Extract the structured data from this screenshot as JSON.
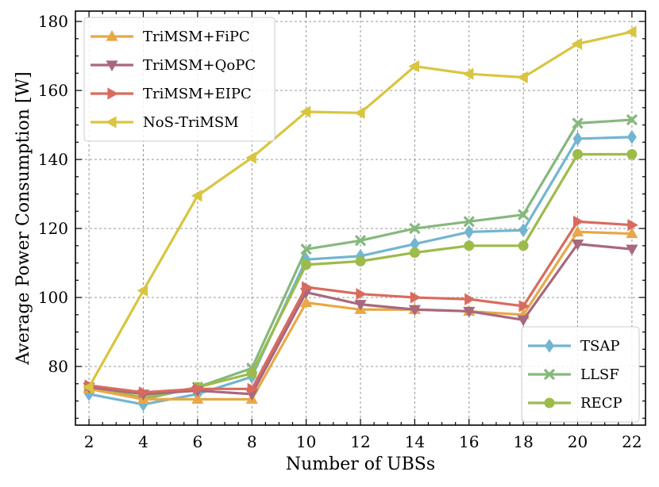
{
  "chart_data": {
    "type": "line",
    "title": "",
    "xlabel": "Number of UBSs",
    "ylabel": "Average Power Consumption [W]",
    "x": [
      2,
      4,
      6,
      8,
      10,
      12,
      14,
      16,
      18,
      20,
      22
    ],
    "xlim": [
      1.5,
      22.5
    ],
    "ylim": [
      63,
      183
    ],
    "xticks": [
      2,
      4,
      6,
      8,
      10,
      12,
      14,
      16,
      18,
      20,
      22
    ],
    "yticks": [
      80,
      100,
      120,
      140,
      160,
      180
    ],
    "grid": true,
    "series": [
      {
        "name": "TriMSM+FiPC",
        "marker": "triangle-up",
        "color": "#E8A847",
        "values": [
          73.5,
          70.5,
          70.5,
          70.5,
          98.5,
          96.5,
          96.5,
          96.0,
          95.0,
          119.0,
          118.5
        ]
      },
      {
        "name": "TriMSM+QoPC",
        "marker": "triangle-down",
        "color": "#A8687E",
        "values": [
          74.0,
          72.0,
          73.0,
          72.0,
          101.5,
          98.0,
          96.5,
          96.0,
          93.5,
          115.5,
          114.0
        ]
      },
      {
        "name": "TriMSM+EIPC",
        "marker": "triangle-right",
        "color": "#D96B5E",
        "values": [
          74.5,
          72.5,
          73.5,
          73.5,
          103.0,
          101.0,
          100.0,
          99.5,
          97.5,
          122.0,
          121.0
        ]
      },
      {
        "name": "NoS-TriMSM",
        "marker": "triangle-left",
        "color": "#D9C53F",
        "values": [
          74.0,
          102.0,
          129.5,
          140.5,
          153.8,
          153.5,
          167.0,
          164.8,
          163.8,
          173.5,
          177.0
        ]
      },
      {
        "name": "TSAP",
        "marker": "diamond",
        "color": "#72B5D0",
        "values": [
          72.0,
          69.0,
          72.0,
          77.0,
          111.0,
          112.0,
          115.5,
          119.0,
          119.5,
          146.0,
          146.5
        ]
      },
      {
        "name": "LLSF",
        "marker": "x",
        "color": "#86B87E",
        "values": [
          74.0,
          70.5,
          74.0,
          79.5,
          114.0,
          116.5,
          120.0,
          122.0,
          124.0,
          150.5,
          151.5
        ]
      },
      {
        "name": "RECP",
        "marker": "circle",
        "color": "#9DBB4A",
        "values": [
          74.0,
          71.0,
          74.0,
          78.0,
          109.5,
          110.5,
          113.0,
          115.0,
          115.0,
          141.5,
          141.5
        ]
      }
    ],
    "legends": [
      {
        "placement": "top-left",
        "entries": [
          "TriMSM+FiPC",
          "TriMSM+QoPC",
          "TriMSM+EIPC",
          "NoS-TriMSM"
        ]
      },
      {
        "placement": "bottom-right",
        "entries": [
          "TSAP",
          "LLSF",
          "RECP"
        ]
      }
    ]
  }
}
